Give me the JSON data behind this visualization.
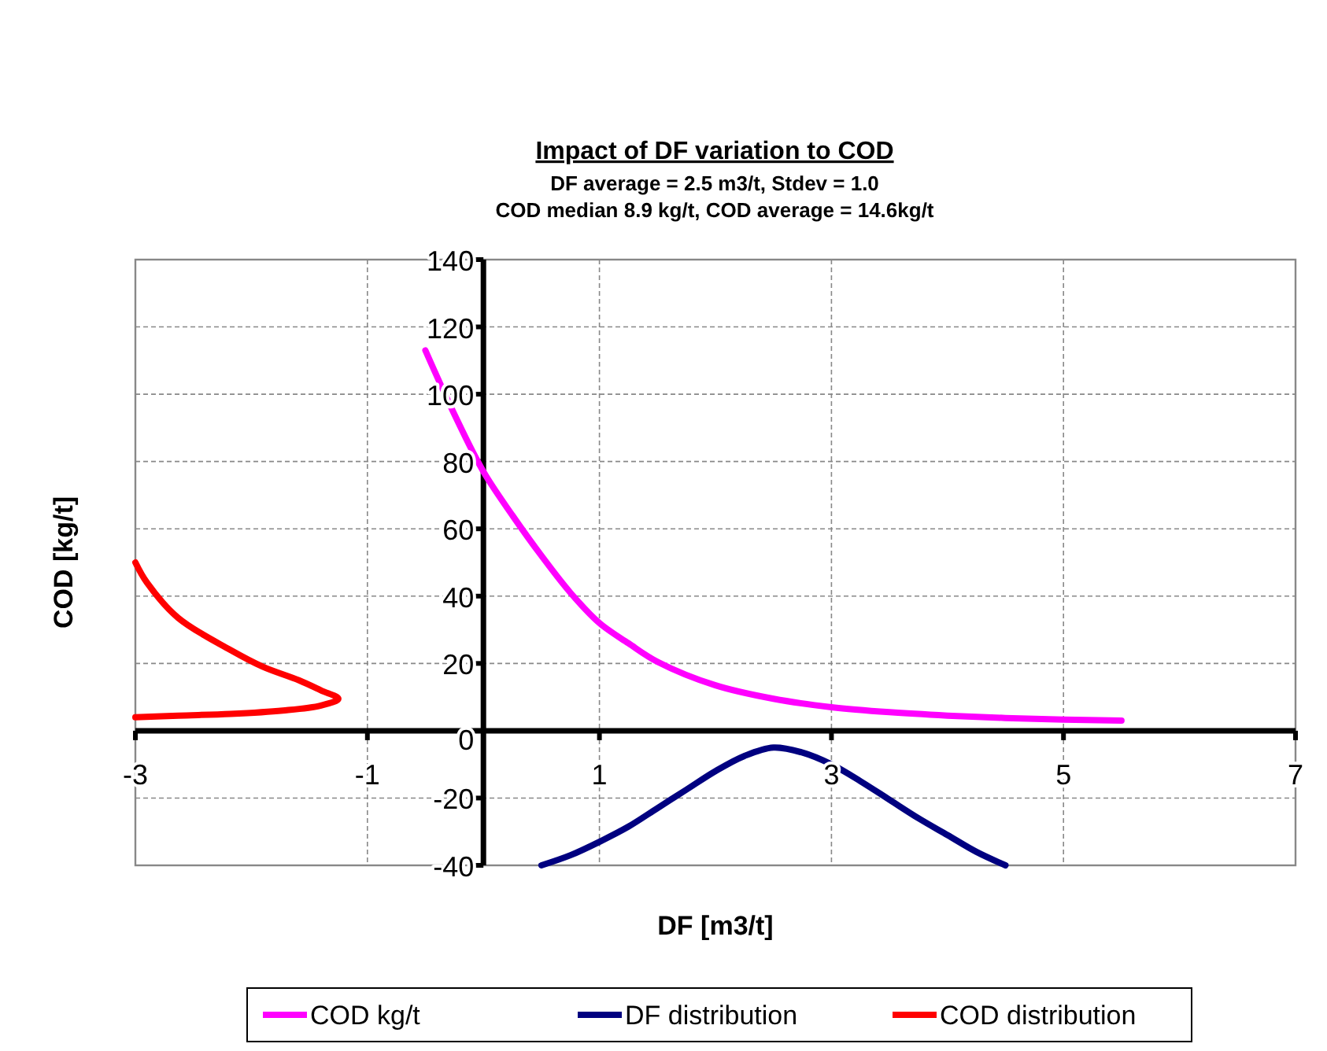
{
  "chart_data": {
    "type": "line",
    "title": "Impact of DF variation to COD",
    "subtitle": "DF average = 2.5 m3/t, Stdev = 1.0\nCOD median 8.9 kg/t, COD average = 14.6kg/t",
    "xlabel": "DF [m3/t]",
    "ylabel": "COD [kg/t]",
    "xlim": [
      -3,
      7
    ],
    "xticks": [
      -3,
      -1,
      1,
      3,
      5,
      7
    ],
    "ylim": [
      -40,
      140
    ],
    "yticks": [
      -40,
      -20,
      0,
      20,
      40,
      60,
      80,
      100,
      120,
      140
    ],
    "grid": true,
    "legend": "bottom",
    "marker": "none",
    "line_style": "solid",
    "series": [
      {
        "name": "COD kg/t",
        "color": "#ff00ff",
        "x": [
          -0.5,
          -0.25,
          0,
          0.25,
          0.5,
          0.75,
          1,
          1.25,
          1.5,
          2,
          2.5,
          3,
          3.5,
          4,
          4.5,
          5,
          5.5
        ],
        "values": [
          113,
          94,
          77,
          64,
          52,
          41,
          32,
          26,
          20.5,
          13.5,
          9.5,
          7,
          5.5,
          4.5,
          3.8,
          3.3,
          3
        ]
      },
      {
        "name": "DF distribution",
        "color": "#000080",
        "x": [
          0.5,
          0.75,
          1,
          1.25,
          1.5,
          1.75,
          2,
          2.25,
          2.5,
          2.75,
          3,
          3.25,
          3.5,
          3.75,
          4,
          4.25,
          4.5
        ],
        "values": [
          -40,
          -37,
          -33,
          -28.5,
          -23,
          -17.5,
          -12,
          -7.5,
          -5,
          -6.5,
          -10,
          -15,
          -20.5,
          -26,
          -31,
          -36,
          -40
        ]
      },
      {
        "name": "COD distribution",
        "color": "#ff0000",
        "x": [
          -3,
          -2.63,
          -2.18,
          -1.73,
          -1.4,
          -1.25,
          -1.4,
          -1.59,
          -1.9,
          -2.18,
          -2.63,
          -2.9,
          -3
        ],
        "values": [
          4,
          4.5,
          5,
          6,
          7.5,
          9.5,
          12,
          15,
          19,
          24,
          33.5,
          44,
          50
        ]
      }
    ]
  }
}
